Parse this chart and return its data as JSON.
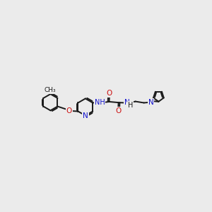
{
  "bg_color": "#ebebeb",
  "bond_color": "#1a1a1a",
  "bond_width": 1.4,
  "atom_colors": {
    "C": "#1a1a1a",
    "N": "#1111cc",
    "O": "#cc1111",
    "H": "#1a1a1a"
  },
  "font_size_atom": 7.5
}
